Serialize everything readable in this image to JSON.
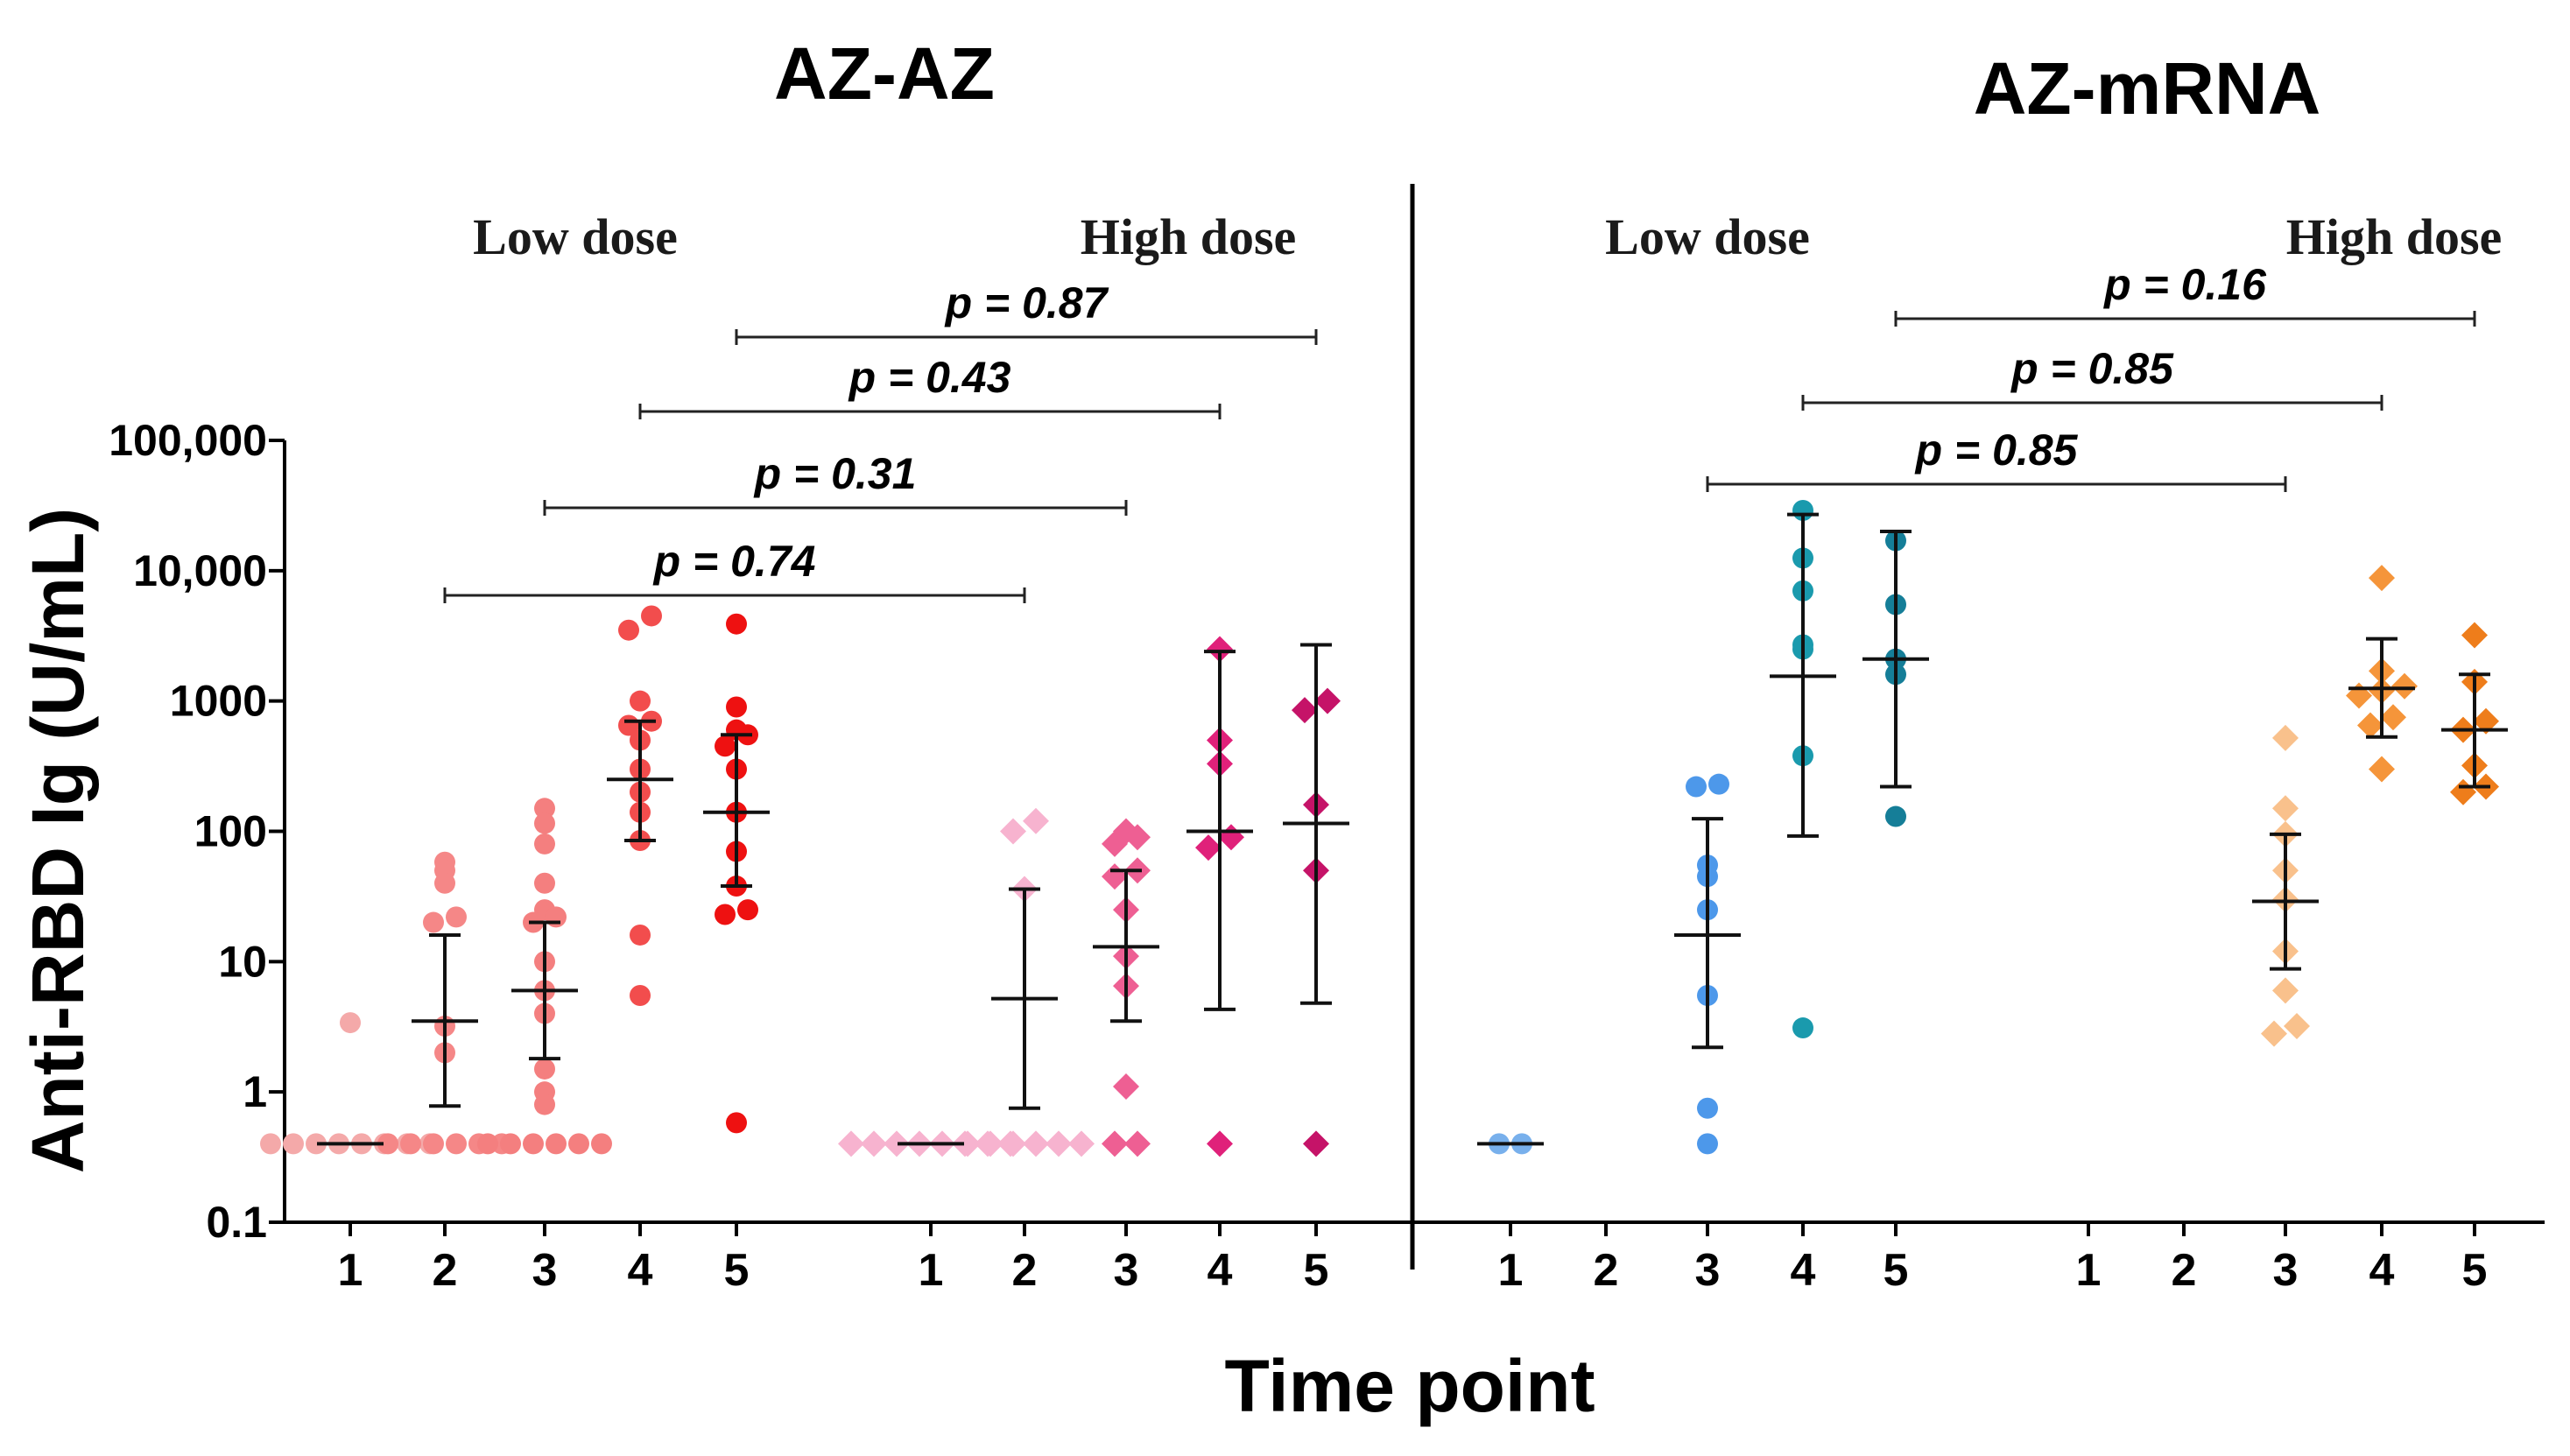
{
  "chart_data": {
    "type": "scatter",
    "titles": [
      "AZ-AZ",
      "AZ-mRNA"
    ],
    "xlabel": "Time point",
    "ylabel": "Anti-RBD Ig (U/mL)",
    "yscale": "log",
    "ylim": [
      0.1,
      100000
    ],
    "yticks": [
      {
        "value": 0.1,
        "label": "0.1"
      },
      {
        "value": 1,
        "label": "1"
      },
      {
        "value": 10,
        "label": "10"
      },
      {
        "value": 100,
        "label": "100"
      },
      {
        "value": 1000,
        "label": "1000"
      },
      {
        "value": 10000,
        "label": "10,000"
      },
      {
        "value": 100000,
        "label": "100,000"
      }
    ],
    "groups": [
      {
        "panel": "AZ-AZ",
        "dose": "Low dose",
        "marker": "circle",
        "timepoints": [
          "1",
          "2",
          "3",
          "4",
          "5"
        ]
      },
      {
        "panel": "AZ-AZ",
        "dose": "High dose",
        "marker": "diamond",
        "timepoints": [
          "1",
          "2",
          "3",
          "4",
          "5"
        ]
      },
      {
        "panel": "AZ-mRNA",
        "dose": "Low dose",
        "marker": "circle",
        "timepoints": [
          "1",
          "2",
          "3",
          "4",
          "5"
        ]
      },
      {
        "panel": "AZ-mRNA",
        "dose": "High dose",
        "marker": "diamond",
        "timepoints": [
          "1",
          "2",
          "3",
          "4",
          "5"
        ]
      }
    ],
    "series": [
      {
        "group": 0,
        "tp": 1,
        "color": "#f4a9a9",
        "median": 0.4,
        "points": [
          0.4,
          0.4,
          0.4,
          0.4,
          0.4,
          0.4,
          0.4,
          0.4,
          3.4
        ]
      },
      {
        "group": 0,
        "tp": 2,
        "color": "#f58787",
        "median": 3.5,
        "lo": 0.78,
        "hi": 16,
        "points": [
          0.4,
          0.4,
          0.4,
          0.4,
          0.4,
          0.4,
          3.2,
          2,
          20,
          22,
          40,
          50,
          58
        ]
      },
      {
        "group": 0,
        "tp": 3,
        "color": "#f47f7f",
        "median": 6,
        "lo": 1.8,
        "hi": 20,
        "points": [
          0.4,
          0.4,
          0.4,
          0.4,
          0.4,
          0.4,
          0.8,
          1,
          1.5,
          4,
          6,
          10,
          20,
          22,
          25,
          40,
          80,
          115,
          150
        ]
      },
      {
        "group": 0,
        "tp": 4,
        "color": "#f24d4d",
        "median": 250,
        "lo": 85,
        "hi": 700,
        "points": [
          5.5,
          16,
          85,
          140,
          200,
          300,
          500,
          650,
          700,
          1000,
          3500,
          4500
        ]
      },
      {
        "group": 0,
        "tp": 5,
        "color": "#ee1111",
        "median": 140,
        "lo": 38,
        "hi": 550,
        "points": [
          0.58,
          23,
          25,
          38,
          70,
          140,
          300,
          450,
          550,
          600,
          900,
          3900
        ]
      },
      {
        "group": 1,
        "tp": 1,
        "color": "#f7b3cf",
        "median": 0.4,
        "points": [
          0.4,
          0.4,
          0.4,
          0.4,
          0.4,
          0.4,
          0.4,
          0.4
        ]
      },
      {
        "group": 1,
        "tp": 2,
        "color": "#f7b3cf",
        "median": 5.2,
        "lo": 0.75,
        "hi": 36,
        "points": [
          0.4,
          0.4,
          0.4,
          0.4,
          0.4,
          0.4,
          36,
          100,
          120
        ]
      },
      {
        "group": 1,
        "tp": 3,
        "color": "#ee5f93",
        "median": 13,
        "lo": 3.5,
        "hi": 50,
        "points": [
          0.4,
          0.4,
          1.1,
          6.5,
          11,
          25,
          45,
          50,
          80,
          90,
          100
        ]
      },
      {
        "group": 1,
        "tp": 4,
        "color": "#e0217a",
        "median": 100,
        "lo": 4.3,
        "hi": 2400,
        "points": [
          0.4,
          75,
          90,
          330,
          500,
          2500
        ]
      },
      {
        "group": 1,
        "tp": 5,
        "color": "#c51368",
        "median": 115,
        "lo": 4.8,
        "hi": 2700,
        "points": [
          0.4,
          50,
          160,
          850,
          1000
        ]
      },
      {
        "group": 2,
        "tp": 1,
        "color": "#78b0ec",
        "median": 0.4,
        "points": [
          0.4,
          0.4
        ]
      },
      {
        "group": 2,
        "tp": 3,
        "color": "#4d98ea",
        "median": 16,
        "lo": 2.2,
        "hi": 125,
        "points": [
          0.4,
          0.75,
          5.5,
          25,
          45,
          55,
          220,
          230
        ]
      },
      {
        "group": 2,
        "tp": 4,
        "color": "#1a9aad",
        "median": 1550,
        "lo": 92,
        "hi": 27000,
        "points": [
          3.1,
          380,
          2500,
          2700,
          7000,
          12500,
          29000
        ]
      },
      {
        "group": 2,
        "tp": 5,
        "color": "#157e98",
        "median": 2100,
        "lo": 220,
        "hi": 20000,
        "points": [
          130,
          1600,
          2100,
          5500,
          17000
        ]
      },
      {
        "group": 3,
        "tp": 3,
        "color": "#f9c18c",
        "median": 29,
        "lo": 8.8,
        "hi": 95,
        "points": [
          2.8,
          3.2,
          6,
          12,
          30,
          50,
          95,
          150,
          520
        ]
      },
      {
        "group": 3,
        "tp": 4,
        "color": "#f5953a",
        "median": 1250,
        "lo": 530,
        "hi": 3000,
        "points": [
          300,
          650,
          750,
          1100,
          1200,
          1300,
          1700,
          8800
        ]
      },
      {
        "group": 3,
        "tp": 5,
        "color": "#ee7d1b",
        "median": 600,
        "lo": 220,
        "hi": 1600,
        "points": [
          200,
          220,
          320,
          600,
          700,
          1400,
          3200
        ]
      }
    ],
    "annotations": [
      {
        "text": "p = 0.74",
        "from": [
          0,
          2
        ],
        "to": [
          1,
          2
        ]
      },
      {
        "text": "p = 0.31",
        "from": [
          0,
          3
        ],
        "to": [
          1,
          3
        ]
      },
      {
        "text": "p = 0.43",
        "from": [
          0,
          4
        ],
        "to": [
          1,
          4
        ]
      },
      {
        "text": "p = 0.87",
        "from": [
          0,
          5
        ],
        "to": [
          1,
          5
        ]
      },
      {
        "text": "p = 0.85",
        "from": [
          2,
          3
        ],
        "to": [
          3,
          3
        ]
      },
      {
        "text": "p = 0.85",
        "from": [
          2,
          4
        ],
        "to": [
          3,
          4
        ]
      },
      {
        "text": "p = 0.16",
        "from": [
          2,
          5
        ],
        "to": [
          3,
          5
        ]
      }
    ]
  }
}
